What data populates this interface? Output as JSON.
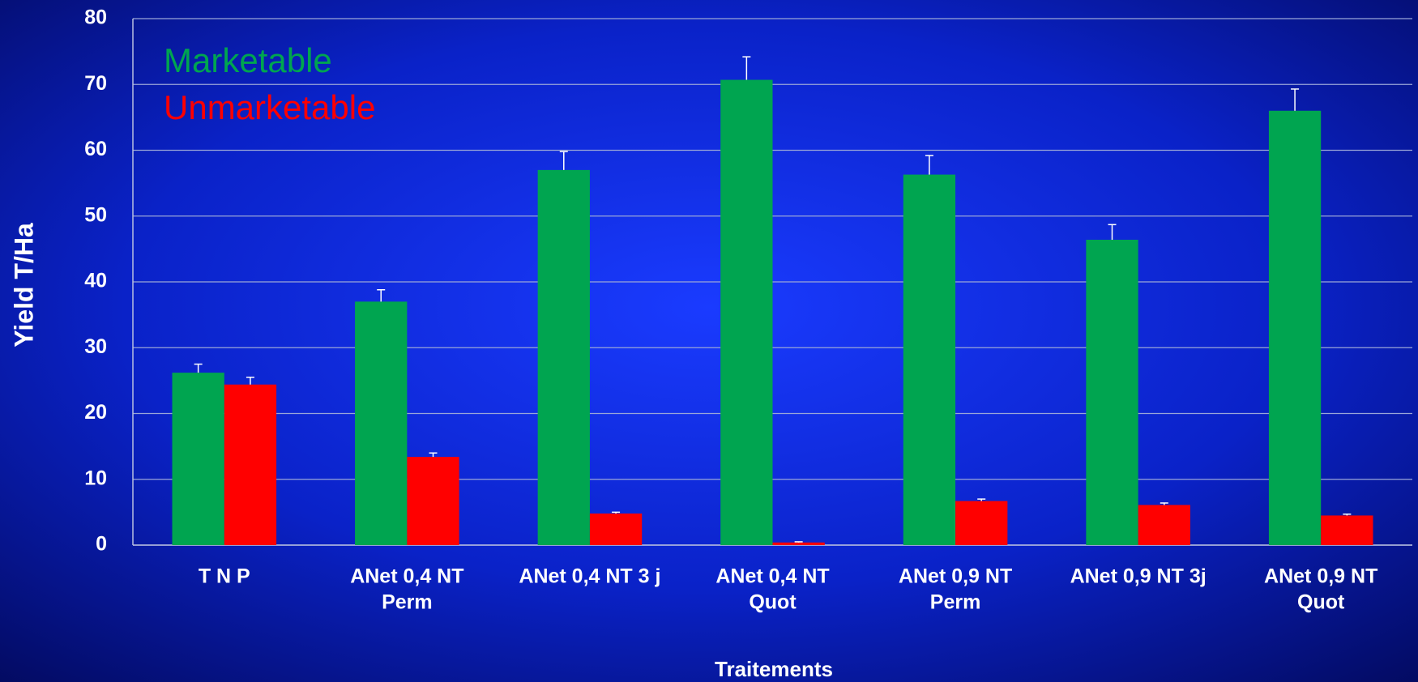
{
  "chart_data": {
    "type": "bar",
    "xlabel": "Traitements",
    "ylabel": "Yield T/Ha",
    "categories": [
      [
        "T N P"
      ],
      [
        "ANet 0,4 NT",
        "Perm"
      ],
      [
        "ANet 0,4 NT 3 j"
      ],
      [
        "ANet 0,4 NT",
        "Quot"
      ],
      [
        "ANet 0,9 NT",
        "Perm"
      ],
      [
        "ANet 0,9 NT 3j"
      ],
      [
        "ANet 0,9 NT",
        "Quot"
      ]
    ],
    "series": [
      {
        "name": "Marketable",
        "color": "#00a550",
        "values": [
          26.2,
          37,
          57,
          70.7,
          56.3,
          46.4,
          66
        ],
        "errors": [
          1.3,
          1.8,
          2.8,
          3.5,
          2.9,
          2.3,
          3.3
        ]
      },
      {
        "name": "Unmarketable",
        "color": "#ff0000",
        "values": [
          24.4,
          13.4,
          4.8,
          0.4,
          6.7,
          6.1,
          4.5
        ],
        "errors": [
          1.1,
          0.6,
          0.2,
          0.1,
          0.3,
          0.3,
          0.2
        ]
      }
    ],
    "ylim": [
      0,
      80
    ],
    "yticks": [
      0,
      10,
      20,
      30,
      40,
      50,
      60,
      70,
      80
    ],
    "grid": true,
    "legend": "upper left"
  }
}
